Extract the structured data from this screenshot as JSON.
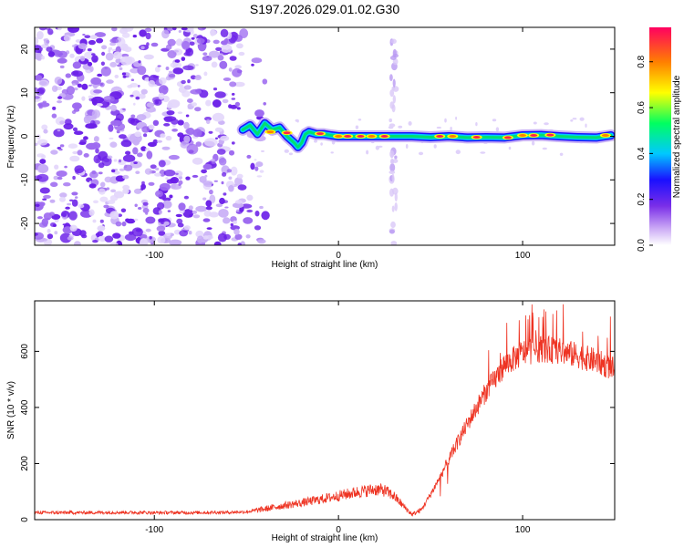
{
  "title": "S197.2026.029.01.02.G30",
  "colors": {
    "snr_line": "#ee3322",
    "axis": "#000000",
    "spectrogram_background": "#ffffff",
    "noise_purple": "#7a3cf0",
    "noise_light": "#d9c8f8"
  },
  "chart_data": [
    {
      "type": "heatmap",
      "name": "spectrogram",
      "xlabel": "Height of straight line (km)",
      "ylabel": "Frequency (Hz)",
      "xlim": [
        -165,
        150
      ],
      "ylim": [
        -25,
        25
      ],
      "x_ticks": [
        -100,
        0,
        100
      ],
      "y_ticks": [
        -20,
        -10,
        0,
        10,
        20
      ],
      "x_tick_labels": [
        "-100",
        "0",
        "100"
      ],
      "y_tick_labels": [
        "-20",
        "-10",
        "0",
        "10",
        "20"
      ],
      "colorbar": {
        "label": "Normalized spectral amplitude",
        "range": [
          0,
          0.95
        ],
        "ticks": [
          0.0,
          0.2,
          0.4,
          0.6,
          0.8
        ],
        "tick_labels": [
          "0.0",
          "0.2",
          "0.4",
          "0.6",
          "0.8"
        ],
        "colormap": [
          "#ffffff",
          "#8a4de8",
          "#1a10ff",
          "#00c8ff",
          "#00ff60",
          "#ffff00",
          "#ff8000",
          "#ff0060"
        ]
      },
      "noise_region_x": [
        -165,
        -52
      ],
      "vertical_band_x": 30,
      "signal_track": {
        "x": [
          -52,
          -48,
          -44,
          -40,
          -36,
          -32,
          -28,
          -24,
          -22,
          -20,
          -18,
          -16,
          -12,
          -8,
          -4,
          0,
          10,
          20,
          30,
          40,
          50,
          60,
          70,
          80,
          90,
          100,
          110,
          120,
          130,
          140,
          148
        ],
        "frequency_hz": [
          1.5,
          2.5,
          0.5,
          3.0,
          1.5,
          2.0,
          0.0,
          -1.5,
          -2.5,
          -1.5,
          0.5,
          1.0,
          0.5,
          0.5,
          0.2,
          0.0,
          0.0,
          0.0,
          0.0,
          0.0,
          -0.2,
          0.0,
          -0.3,
          -0.2,
          -0.3,
          0.2,
          0.3,
          0.0,
          -0.2,
          -0.3,
          0.2
        ]
      }
    },
    {
      "type": "line",
      "name": "snr",
      "xlabel": "Height of straight line (km)",
      "ylabel": "SNR (10 * v/v)",
      "xlim": [
        -165,
        150
      ],
      "ylim": [
        0,
        780
      ],
      "x_ticks": [
        -100,
        0,
        100
      ],
      "y_ticks": [
        0,
        200,
        400,
        600
      ],
      "x_tick_labels": [
        "-100",
        "0",
        "100"
      ],
      "y_tick_labels": [
        "0",
        "200",
        "400",
        "600"
      ],
      "series": [
        {
          "name": "SNR",
          "x": [
            -165,
            -140,
            -120,
            -100,
            -80,
            -60,
            -50,
            -40,
            -30,
            -20,
            -10,
            0,
            10,
            20,
            25,
            30,
            35,
            40,
            45,
            50,
            55,
            60,
            65,
            70,
            75,
            80,
            85,
            90,
            100,
            110,
            120,
            130,
            140,
            150
          ],
          "y": [
            25,
            25,
            26,
            25,
            25,
            26,
            28,
            38,
            50,
            60,
            72,
            85,
            98,
            108,
            104,
            85,
            50,
            18,
            35,
            90,
            150,
            215,
            280,
            340,
            400,
            455,
            500,
            550,
            595,
            610,
            600,
            585,
            565,
            535
          ]
        }
      ]
    }
  ]
}
